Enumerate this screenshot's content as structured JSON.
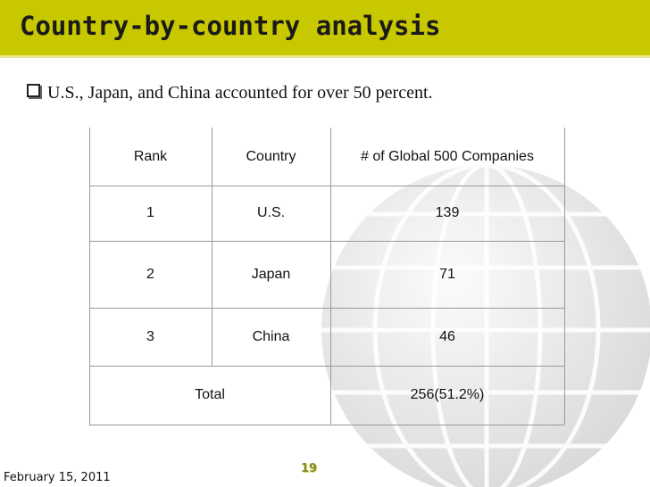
{
  "header": {
    "title": "Country-by-country analysis"
  },
  "bullet": "U.S., Japan, and China accounted for over 50 percent.",
  "table": {
    "columns": [
      "Rank",
      "Country",
      "# of Global 500 Companies"
    ],
    "rows": [
      [
        1,
        "U.S.",
        139
      ],
      [
        2,
        "Japan",
        71
      ],
      [
        3,
        "China",
        46
      ]
    ],
    "total": {
      "label": "Total",
      "value": "256(51.2%)"
    }
  },
  "footer": {
    "date": "February 15, 2011",
    "page": 19
  }
}
